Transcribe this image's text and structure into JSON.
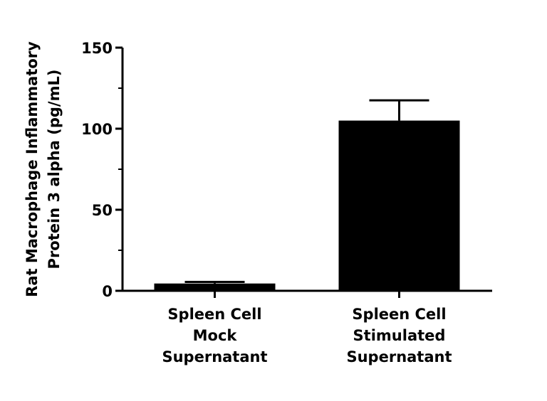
{
  "chart_data": {
    "type": "bar",
    "ylabel": "Rat Macrophage Inflammatory\nProtein 3 alpha (pg/mL)",
    "categories": [
      "Spleen Cell\nMock\nSupernatant",
      "Spleen Cell\nStimulated\nSupernatant"
    ],
    "values": [
      4.5,
      105
    ],
    "errors": [
      1,
      12.5
    ],
    "color": "#000000",
    "ylim": [
      0,
      150
    ],
    "yticks": [
      0,
      50,
      100,
      150
    ],
    "yminorticks": [
      25,
      75,
      125
    ],
    "grid": false
  }
}
